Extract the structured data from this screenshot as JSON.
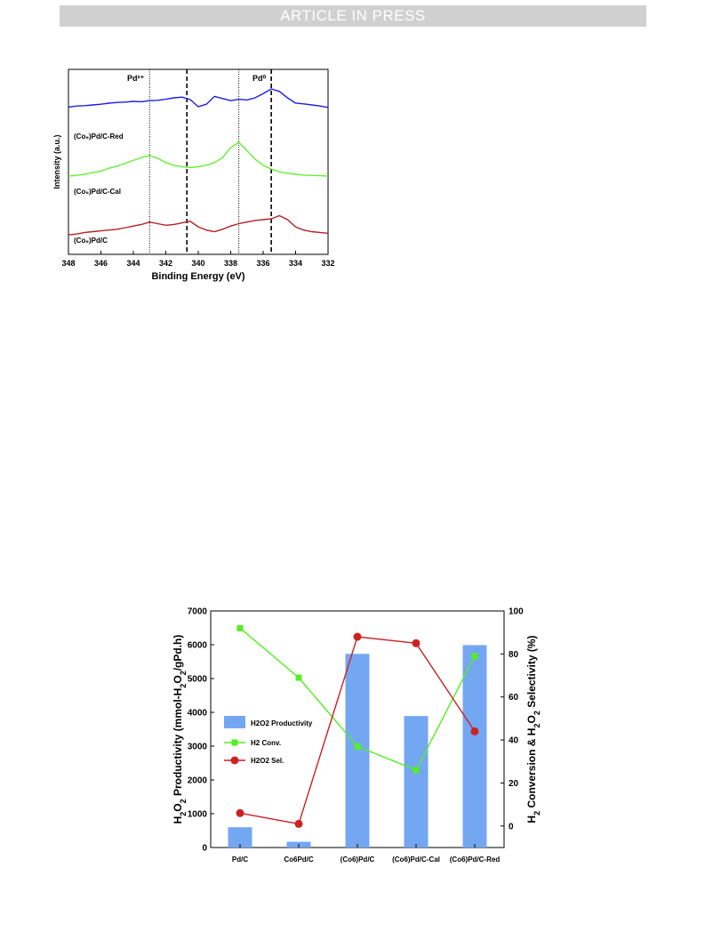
{
  "header": {
    "banner": "ARTICLE IN PRESS"
  },
  "chart_data": [
    {
      "type": "line",
      "xlabel": "Binding Energy (eV)",
      "ylabel": "Intensity (a.u.)",
      "xlim": [
        348,
        332
      ],
      "x_ticks": [
        "348",
        "346",
        "344",
        "342",
        "340",
        "338",
        "336",
        "334",
        "332"
      ],
      "peak_markers": [
        {
          "label": "Pd²⁺",
          "x": 343.0,
          "style": "dotted"
        },
        {
          "label": "",
          "x": 340.7,
          "style": "dashed"
        },
        {
          "label": "",
          "x": 337.5,
          "style": "dotted"
        },
        {
          "label": "Pd⁰",
          "x": 335.5,
          "style": "dashed"
        }
      ],
      "colors": {
        "red_sample": "#1e1ee6",
        "cal_sample": "#66ee33",
        "plain_sample": "#b22222"
      },
      "series": [
        {
          "name": "(Co₆)Pd/C-Red",
          "color": "#1e1ee6",
          "x": [
            348,
            347.5,
            347,
            346.5,
            346,
            345.5,
            345,
            344.5,
            344,
            343.5,
            343,
            342.5,
            342,
            341.5,
            341,
            340.5,
            340,
            339.5,
            339,
            338.5,
            338,
            337.5,
            337,
            336.5,
            336,
            335.5,
            335,
            334.5,
            334,
            333.5,
            333,
            332.5,
            332
          ],
          "y": [
            0.44,
            0.47,
            0.48,
            0.5,
            0.52,
            0.55,
            0.57,
            0.58,
            0.6,
            0.59,
            0.62,
            0.63,
            0.66,
            0.7,
            0.72,
            0.65,
            0.45,
            0.52,
            0.74,
            0.68,
            0.62,
            0.66,
            0.64,
            0.7,
            0.82,
            0.95,
            0.88,
            0.7,
            0.55,
            0.53,
            0.5,
            0.47,
            0.43
          ]
        },
        {
          "name": "(Co₆)Pd/C-Cal",
          "color": "#66ee33",
          "x": [
            348,
            347.5,
            347,
            346.5,
            346,
            345.5,
            345,
            344.5,
            344,
            343.5,
            343,
            342.5,
            342,
            341.5,
            341,
            340.5,
            340,
            339.5,
            339,
            338.5,
            338,
            337.5,
            337,
            336.5,
            336,
            335.5,
            335,
            334.5,
            334,
            333.5,
            333,
            332.5,
            332
          ],
          "y": [
            0.0,
            0.02,
            0.05,
            0.1,
            0.14,
            0.22,
            0.28,
            0.36,
            0.44,
            0.52,
            0.58,
            0.5,
            0.38,
            0.3,
            0.26,
            0.24,
            0.26,
            0.3,
            0.38,
            0.52,
            0.8,
            0.95,
            0.72,
            0.48,
            0.3,
            0.2,
            0.12,
            0.08,
            0.05,
            0.03,
            0.02,
            0.01,
            0.0
          ]
        },
        {
          "name": "(Co₆)Pd/C",
          "color": "#b22222",
          "x": [
            348,
            347.5,
            347,
            346.5,
            346,
            345.5,
            345,
            344.5,
            344,
            343.5,
            343,
            342.5,
            342,
            341.5,
            341,
            340.5,
            340,
            339.5,
            339,
            338.5,
            338,
            337.5,
            337,
            336.5,
            336,
            335.5,
            335,
            334.5,
            334,
            333.5,
            333,
            332.5,
            332
          ],
          "y": [
            0.02,
            0.04,
            0.08,
            0.1,
            0.12,
            0.14,
            0.16,
            0.2,
            0.24,
            0.28,
            0.34,
            0.3,
            0.26,
            0.28,
            0.32,
            0.36,
            0.22,
            0.14,
            0.1,
            0.16,
            0.24,
            0.3,
            0.34,
            0.38,
            0.4,
            0.42,
            0.5,
            0.4,
            0.22,
            0.14,
            0.1,
            0.08,
            0.06
          ]
        }
      ]
    },
    {
      "type": "bar",
      "categories": [
        "Pd/C",
        "Co6Pd/C",
        "(Co6)Pd/C",
        "(Co6)Pd/C-Cal",
        "(Co6)Pd/C-Red"
      ],
      "ylabel_left_parts": [
        "H",
        "2",
        "O",
        "2",
        " Productivity (mmol-H",
        "2",
        "O",
        "2",
        "/gPd.h)"
      ],
      "ylabel_right_parts": [
        "H",
        "2",
        " Conversion & H",
        "2",
        "O",
        "2",
        " Selectivity (%)"
      ],
      "ylim_left": [
        0,
        7000
      ],
      "left_ticks": [
        "0",
        "1000",
        "2000",
        "3000",
        "4000",
        "5000",
        "6000",
        "7000"
      ],
      "ylim_right": [
        -10,
        100
      ],
      "right_ticks": [
        "0",
        "20",
        "40",
        "60",
        "80",
        "100"
      ],
      "colors": {
        "bar": "#74a7f2",
        "conv": "#55ee22",
        "sel": "#cc2222"
      },
      "series": [
        {
          "name": "H2O2 Productivity",
          "axis": "left",
          "values": [
            600,
            170,
            5730,
            3890,
            5990
          ]
        },
        {
          "name": "H2 Conv.",
          "axis": "right",
          "values": [
            92,
            69,
            37,
            26,
            79
          ]
        },
        {
          "name": "H2O2 Sel.",
          "axis": "right",
          "values": [
            6,
            1,
            88,
            85,
            44
          ]
        }
      ],
      "legend_position": "center-left"
    }
  ]
}
